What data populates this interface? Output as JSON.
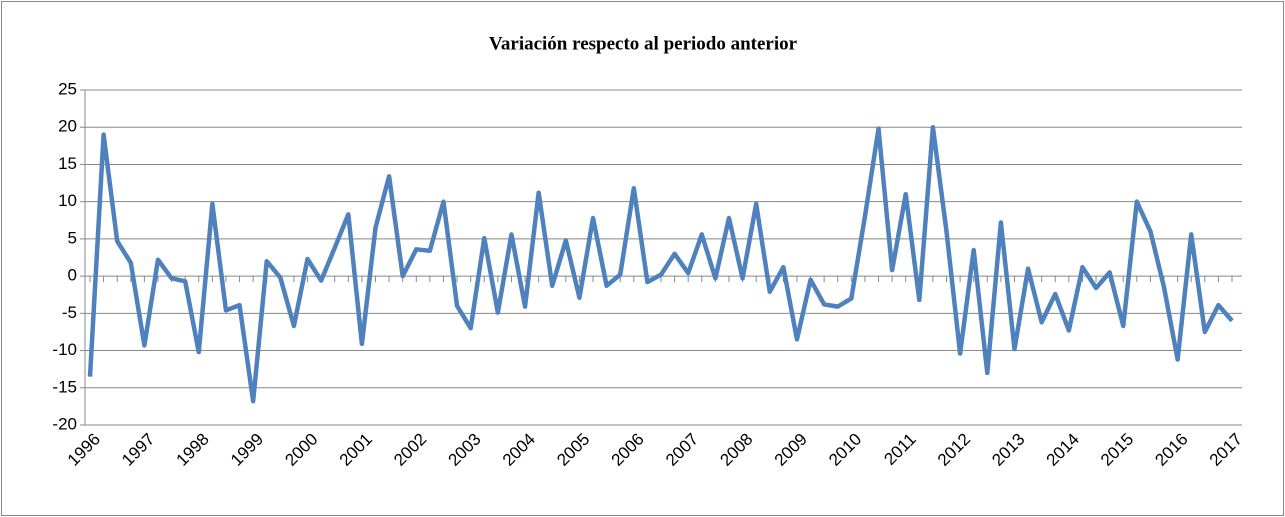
{
  "chart_data": {
    "type": "line",
    "title": "Variación respecto al periodo anterior",
    "categories": [
      "1996",
      null,
      null,
      null,
      "1997",
      null,
      null,
      null,
      "1998",
      null,
      null,
      null,
      "1999",
      null,
      null,
      null,
      "2000",
      null,
      null,
      null,
      "2001",
      null,
      null,
      null,
      "2002",
      null,
      null,
      null,
      "2003",
      null,
      null,
      null,
      "2004",
      null,
      null,
      null,
      "2005",
      null,
      null,
      null,
      "2006",
      null,
      null,
      null,
      "2007",
      null,
      null,
      null,
      "2008",
      null,
      null,
      null,
      "2009",
      null,
      null,
      null,
      "2010",
      null,
      null,
      null,
      "2011",
      null,
      null,
      null,
      "2012",
      null,
      null,
      null,
      "2013",
      null,
      null,
      null,
      "2014",
      null,
      null,
      null,
      "2015",
      null,
      null,
      null,
      "2016",
      null,
      null,
      null,
      "2017"
    ],
    "values": [
      -13.5,
      19,
      4.7,
      1.8,
      -9.3,
      2.2,
      -0.3,
      -0.7,
      -10.2,
      9.7,
      -4.6,
      -3.9,
      -16.8,
      2,
      -0.2,
      -6.7,
      2.3,
      -0.6,
      3.8,
      8.3,
      -9.1,
      6.5,
      13.4,
      0,
      3.6,
      3.4,
      10,
      -4,
      -7,
      5.1,
      -4.9,
      5.6,
      -4.1,
      11.2,
      -1.3,
      4.8,
      -2.9,
      7.8,
      -1.3,
      0.2,
      11.8,
      -0.8,
      0.2,
      3,
      0.4,
      5.6,
      -0.3,
      7.8,
      -0.3,
      9.7,
      -2.1,
      1.2,
      -8.5,
      -0.5,
      -3.8,
      -4.1,
      -3,
      8,
      19.8,
      0.8,
      11,
      -3.2,
      20,
      6,
      -10.4,
      3.5,
      -13,
      7.2,
      -9.8,
      1,
      -6.2,
      -2.4,
      -7.3,
      1.2,
      -1.6,
      0.5,
      -6.7,
      10,
      6,
      -1.5,
      -11.2,
      5.6,
      -7.5,
      -3.9,
      -6
    ],
    "color": "#4f81bd",
    "ylim": [
      -20,
      25
    ],
    "yticks": [
      -20,
      -15,
      -10,
      -5,
      0,
      5,
      10,
      15,
      20,
      25
    ],
    "grid": true
  }
}
